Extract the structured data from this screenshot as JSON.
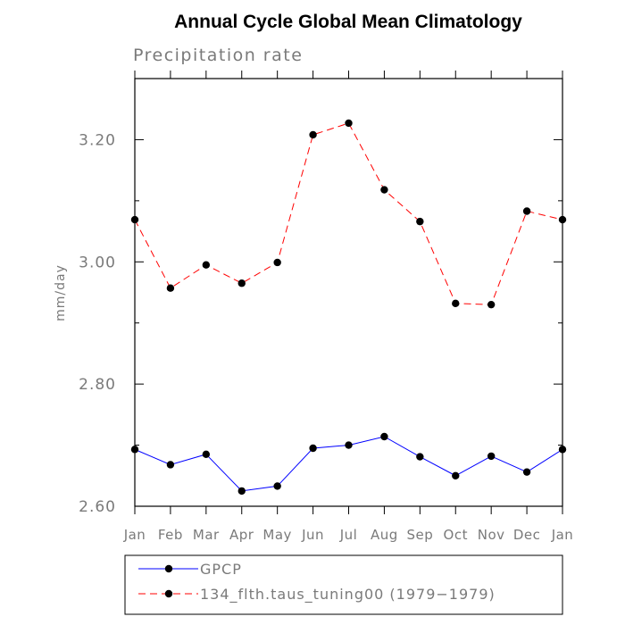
{
  "chart_data": {
    "type": "line",
    "title": "Annual Cycle Global Mean Climatology",
    "subtitle": "Precipitation rate",
    "ylabel": "mm/day",
    "xlabel": "",
    "categories": [
      "Jan",
      "Feb",
      "Mar",
      "Apr",
      "May",
      "Jun",
      "Jul",
      "Aug",
      "Sep",
      "Oct",
      "Nov",
      "Dec",
      "Jan"
    ],
    "ylim": [
      2.6,
      3.3
    ],
    "yticks": [
      "2.60",
      "2.80",
      "3.00",
      "3.20"
    ],
    "grid": false,
    "legend_position": "bottom",
    "series": [
      {
        "name": "GPCP",
        "color": "#0000ff",
        "dash": "solid",
        "values": [
          2.693,
          2.668,
          2.685,
          2.625,
          2.633,
          2.695,
          2.7,
          2.714,
          2.681,
          2.65,
          2.682,
          2.656,
          2.693
        ]
      },
      {
        "name": "134_flth.taus_tuning00 (1979−1979)",
        "color": "#ff0000",
        "dash": "dashed",
        "values": [
          3.069,
          2.957,
          2.995,
          2.965,
          2.999,
          3.208,
          3.227,
          3.118,
          3.066,
          2.932,
          2.93,
          3.083,
          3.069
        ]
      }
    ]
  }
}
